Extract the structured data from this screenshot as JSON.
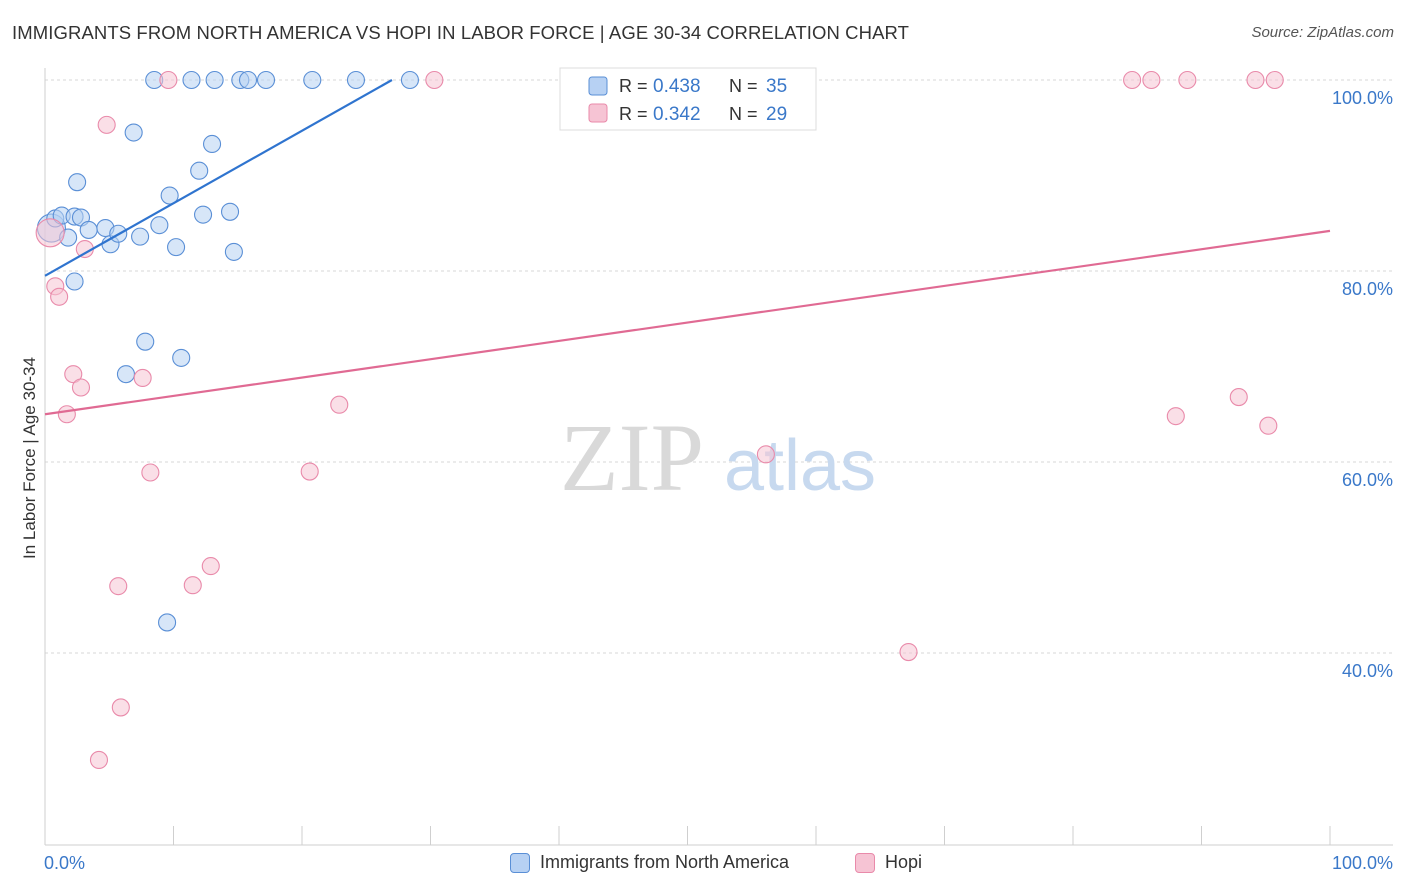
{
  "title": "IMMIGRANTS FROM NORTH AMERICA VS HOPI IN LABOR FORCE | AGE 30-34 CORRELATION CHART",
  "source": "Source: ZipAtlas.com",
  "watermark": {
    "zip": "ZIP",
    "atlas": "atlas"
  },
  "colors": {
    "blue_fill": "#b7d1f3",
    "blue_stroke": "#5a8fd6",
    "blue_line": "#2f74cf",
    "pink_fill": "#f6c4d4",
    "pink_stroke": "#e98aaa",
    "pink_line": "#e06a93",
    "axis_text": "#3a78c9",
    "grid": "#d7d7d7"
  },
  "legend": [
    {
      "r_label": "R =",
      "r_value": "0.438",
      "n_label": "N =",
      "n_value": "35"
    },
    {
      "r_label": "R =",
      "r_value": "0.342",
      "n_label": "N =",
      "n_value": "29"
    }
  ],
  "chart_data": {
    "type": "scatter",
    "title": "IMMIGRANTS FROM NORTH AMERICA VS HOPI IN LABOR FORCE | AGE 30-34 CORRELATION CHART",
    "xlabel": "",
    "ylabel": "In Labor Force | Age 30-34",
    "xlim": [
      0,
      100
    ],
    "ylim": [
      20,
      102
    ],
    "x_tick_labels": [
      "0.0%",
      "100.0%"
    ],
    "y_ticks": [
      40,
      60,
      80,
      100
    ],
    "y_tick_labels": [
      "40.0%",
      "60.0%",
      "80.0%",
      "100.0%"
    ],
    "grid": true,
    "legend_position": "top-center",
    "series": [
      {
        "name": "Immigrants from North America",
        "color": "#5a8fd6",
        "r": 0.438,
        "n": 35,
        "trend": {
          "x": [
            0,
            27
          ],
          "y": [
            79.5,
            100
          ]
        },
        "points": [
          {
            "x": 0.5,
            "y": 84.5,
            "big": true
          },
          {
            "x": 0.8,
            "y": 85.5
          },
          {
            "x": 1.3,
            "y": 85.8
          },
          {
            "x": 1.8,
            "y": 83.5
          },
          {
            "x": 2.3,
            "y": 78.9
          },
          {
            "x": 2.5,
            "y": 89.3
          },
          {
            "x": 2.3,
            "y": 85.7
          },
          {
            "x": 2.8,
            "y": 85.6
          },
          {
            "x": 3.4,
            "y": 84.3
          },
          {
            "x": 4.7,
            "y": 84.5
          },
          {
            "x": 5.1,
            "y": 82.8
          },
          {
            "x": 5.7,
            "y": 83.9
          },
          {
            "x": 6.3,
            "y": 69.2
          },
          {
            "x": 6.9,
            "y": 94.5
          },
          {
            "x": 7.4,
            "y": 83.6
          },
          {
            "x": 7.8,
            "y": 72.6
          },
          {
            "x": 8.5,
            "y": 100
          },
          {
            "x": 8.9,
            "y": 84.8
          },
          {
            "x": 9.5,
            "y": 43.2
          },
          {
            "x": 9.7,
            "y": 87.9
          },
          {
            "x": 10.2,
            "y": 82.5
          },
          {
            "x": 10.6,
            "y": 70.9
          },
          {
            "x": 11.4,
            "y": 100
          },
          {
            "x": 12.0,
            "y": 90.5
          },
          {
            "x": 12.3,
            "y": 85.9
          },
          {
            "x": 13.0,
            "y": 93.3
          },
          {
            "x": 13.2,
            "y": 100
          },
          {
            "x": 14.4,
            "y": 86.2
          },
          {
            "x": 14.7,
            "y": 82.0
          },
          {
            "x": 15.2,
            "y": 100
          },
          {
            "x": 15.8,
            "y": 100
          },
          {
            "x": 17.2,
            "y": 100
          },
          {
            "x": 20.8,
            "y": 100
          },
          {
            "x": 24.2,
            "y": 100
          },
          {
            "x": 28.4,
            "y": 100
          }
        ]
      },
      {
        "name": "Hopi",
        "color": "#e98aaa",
        "r": 0.342,
        "n": 29,
        "trend": {
          "x": [
            0,
            100
          ],
          "y": [
            65.0,
            84.2
          ]
        },
        "points": [
          {
            "x": 0.4,
            "y": 84.0,
            "big": true
          },
          {
            "x": 0.8,
            "y": 78.4
          },
          {
            "x": 1.1,
            "y": 77.3
          },
          {
            "x": 1.7,
            "y": 65.0
          },
          {
            "x": 2.2,
            "y": 69.2
          },
          {
            "x": 2.8,
            "y": 67.8
          },
          {
            "x": 3.1,
            "y": 82.3
          },
          {
            "x": 4.2,
            "y": 28.8
          },
          {
            "x": 4.8,
            "y": 95.3
          },
          {
            "x": 5.7,
            "y": 47.0
          },
          {
            "x": 5.9,
            "y": 34.3
          },
          {
            "x": 7.6,
            "y": 68.8
          },
          {
            "x": 8.2,
            "y": 58.9
          },
          {
            "x": 9.6,
            "y": 100
          },
          {
            "x": 11.5,
            "y": 47.1
          },
          {
            "x": 12.9,
            "y": 49.1
          },
          {
            "x": 20.6,
            "y": 59.0
          },
          {
            "x": 22.9,
            "y": 66.0
          },
          {
            "x": 30.3,
            "y": 100
          },
          {
            "x": 56.1,
            "y": 60.8
          },
          {
            "x": 67.2,
            "y": 40.1
          },
          {
            "x": 84.6,
            "y": 100
          },
          {
            "x": 86.1,
            "y": 100
          },
          {
            "x": 88.0,
            "y": 64.8
          },
          {
            "x": 88.9,
            "y": 100
          },
          {
            "x": 92.9,
            "y": 66.8
          },
          {
            "x": 94.2,
            "y": 100
          },
          {
            "x": 95.2,
            "y": 63.8
          },
          {
            "x": 95.7,
            "y": 100
          }
        ]
      }
    ]
  }
}
